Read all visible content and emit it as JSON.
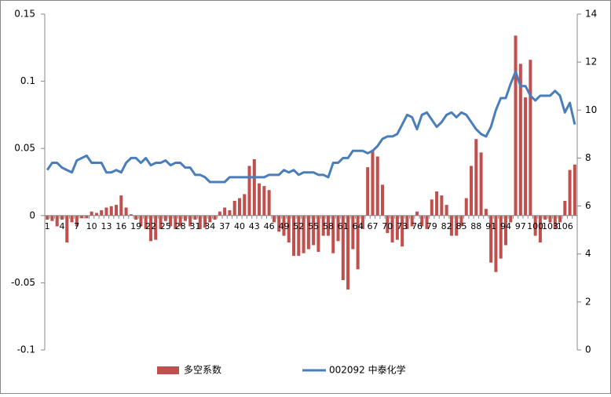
{
  "chart_data": {
    "type": "combo",
    "categories": [
      "1",
      null,
      null,
      "4",
      null,
      null,
      "7",
      null,
      null,
      "10",
      null,
      null,
      "13",
      null,
      null,
      "16",
      null,
      null,
      "19",
      null,
      null,
      "22",
      null,
      null,
      "25",
      null,
      null,
      "28",
      null,
      null,
      "31",
      null,
      null,
      "34",
      null,
      null,
      "37",
      null,
      null,
      "40",
      null,
      null,
      "43",
      null,
      null,
      "46",
      null,
      null,
      "49",
      null,
      null,
      "52",
      null,
      null,
      "55",
      null,
      null,
      "58",
      null,
      null,
      "61",
      null,
      null,
      "64",
      null,
      null,
      "67",
      null,
      null,
      "70",
      null,
      null,
      "73",
      null,
      null,
      "76",
      null,
      null,
      "79",
      null,
      null,
      "82",
      null,
      null,
      "85",
      null,
      null,
      "88",
      null,
      null,
      "91",
      null,
      null,
      "94",
      null,
      null,
      "97",
      null,
      null,
      "100",
      null,
      null,
      "103",
      null,
      null,
      "106",
      null,
      null
    ],
    "series": [
      {
        "name": "多空系数",
        "type": "bar",
        "color": "#c0504d",
        "values": [
          -0.003,
          -0.004,
          -0.008,
          -0.003,
          -0.02,
          -0.005,
          -0.008,
          -0.002,
          -0.002,
          0.003,
          0.002,
          0.004,
          0.006,
          0.007,
          0.008,
          0.015,
          0.006,
          0.001,
          -0.003,
          -0.008,
          -0.01,
          -0.019,
          -0.018,
          -0.01,
          -0.004,
          -0.008,
          -0.01,
          -0.008,
          -0.004,
          -0.008,
          -0.003,
          -0.01,
          -0.009,
          -0.005,
          -0.003,
          0.003,
          0.006,
          0.004,
          0.011,
          0.013,
          0.016,
          0.037,
          0.042,
          0.024,
          0.022,
          0.019,
          -0.005,
          -0.012,
          -0.015,
          -0.02,
          -0.03,
          -0.03,
          -0.028,
          -0.025,
          -0.022,
          -0.027,
          -0.015,
          -0.015,
          -0.028,
          -0.019,
          -0.048,
          -0.055,
          -0.025,
          -0.04,
          -0.01,
          0.036,
          0.049,
          0.044,
          0.023,
          -0.013,
          -0.02,
          -0.018,
          -0.023,
          -0.01,
          -0.008,
          0.003,
          -0.008,
          -0.01,
          0.012,
          0.018,
          0.015,
          0.008,
          -0.015,
          -0.015,
          -0.008,
          0.013,
          0.037,
          0.057,
          0.047,
          0.005,
          -0.035,
          -0.042,
          -0.032,
          -0.022,
          -0.005,
          0.134,
          0.113,
          0.088,
          0.116,
          -0.015,
          -0.02,
          -0.003,
          -0.005,
          -0.01,
          -0.005,
          0.011,
          0.034,
          0.038
        ]
      },
      {
        "name": "002092 中泰化学",
        "type": "line",
        "axis": "y2",
        "color": "#4a7ebb",
        "values": [
          7.5,
          7.8,
          7.8,
          7.6,
          7.5,
          7.4,
          7.9,
          8.0,
          8.1,
          7.8,
          7.8,
          7.8,
          7.4,
          7.4,
          7.5,
          7.4,
          7.8,
          8.0,
          8.0,
          7.8,
          8.0,
          7.7,
          7.8,
          7.8,
          7.9,
          7.7,
          7.8,
          7.8,
          7.6,
          7.6,
          7.3,
          7.3,
          7.2,
          7.0,
          7.0,
          7.0,
          7.0,
          7.2,
          7.2,
          7.2,
          7.2,
          7.2,
          7.2,
          7.2,
          7.2,
          7.3,
          7.3,
          7.3,
          7.5,
          7.4,
          7.5,
          7.3,
          7.4,
          7.4,
          7.4,
          7.3,
          7.3,
          7.2,
          7.8,
          7.8,
          8.0,
          8.0,
          8.3,
          8.3,
          8.3,
          8.2,
          8.3,
          8.5,
          8.8,
          8.9,
          8.9,
          9.0,
          9.4,
          9.8,
          9.7,
          9.2,
          9.8,
          9.9,
          9.6,
          9.3,
          9.5,
          9.8,
          9.9,
          9.7,
          9.9,
          9.8,
          9.5,
          9.2,
          9.0,
          8.9,
          9.3,
          10.0,
          10.5,
          10.5,
          11.1,
          11.6,
          11.0,
          11.0,
          10.6,
          10.4,
          10.6,
          10.6,
          10.6,
          10.8,
          10.6,
          9.9,
          10.3,
          9.4
        ]
      }
    ],
    "ylim": [
      -0.1,
      0.15
    ],
    "yticks": [
      0.15,
      0.1,
      0.05,
      0,
      -0.05,
      -0.1
    ],
    "y2lim": [
      0,
      14
    ],
    "y2ticks": [
      14,
      12,
      10,
      8,
      6,
      4,
      2,
      0
    ],
    "legend": "bottom"
  }
}
